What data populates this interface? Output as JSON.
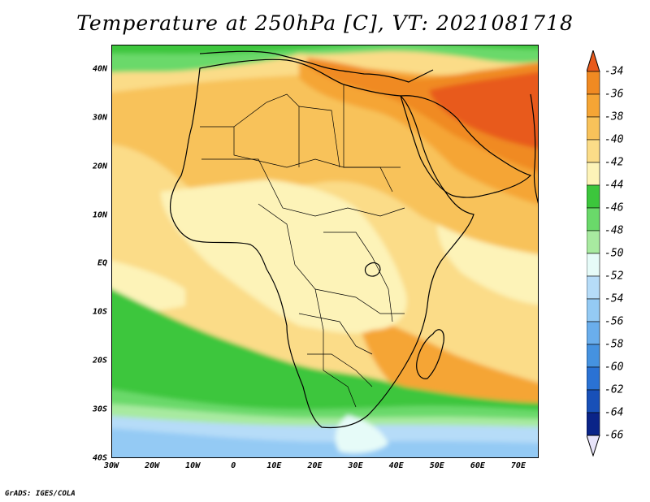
{
  "title": "Temperature at 250hPa [C], VT: 2021081718",
  "credit": "GrADS: IGES/COLA",
  "map": {
    "region": "Africa / Arabian Peninsula",
    "lon_range": [
      -30,
      75
    ],
    "lat_range": [
      -40,
      45
    ],
    "y_axis_labels": [
      "40N",
      "30N",
      "20N",
      "10N",
      "EQ",
      "10S",
      "20S",
      "30S",
      "40S"
    ],
    "x_axis_labels": [
      "30W",
      "20W",
      "10W",
      "0",
      "10E",
      "20E",
      "30E",
      "40E",
      "50E",
      "60E",
      "70E"
    ]
  },
  "colorbar": {
    "labels": [
      "-34",
      "-36",
      "-38",
      "-40",
      "-42",
      "-44",
      "-46",
      "-48",
      "-50",
      "-52",
      "-54",
      "-56",
      "-58",
      "-60",
      "-62",
      "-64",
      "-66"
    ],
    "colors": [
      "#e85a1c",
      "#f08a22",
      "#f5a535",
      "#f8c25a",
      "#fbdc88",
      "#fdf3b8",
      "#3cc63c",
      "#6ad96a",
      "#a8eaa0",
      "#e6fbf8",
      "#b6dcf8",
      "#94caf4",
      "#6aaeec",
      "#4592e0",
      "#2a72d4",
      "#1850b8",
      "#0a2488",
      "#e8e4fa"
    ]
  }
}
